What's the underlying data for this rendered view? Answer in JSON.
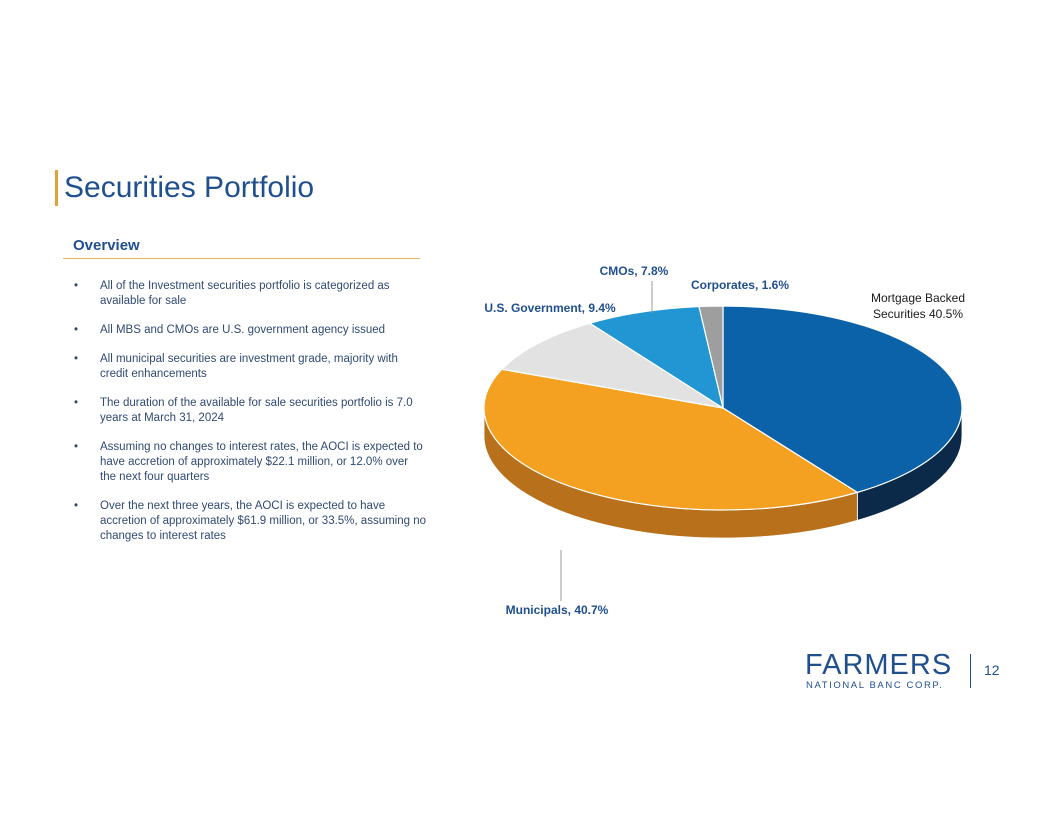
{
  "slide": {
    "title": "Securities Portfolio",
    "section": "Overview",
    "page_number": "12"
  },
  "bullets": [
    "All of the Investment securities portfolio is categorized as available for sale",
    "All MBS and CMOs are U.S. government agency issued",
    "All municipal securities are investment grade, majority with credit enhancements",
    "The duration of the available for sale securities portfolio is 7.0 years at March 31, 2024",
    "Assuming no changes to interest rates, the AOCI is expected to have accretion of approximately $22.1 million, or 12.0% over the next four quarters",
    "Over the next three years, the AOCI is expected to have accretion of approximately $61.9 million, or 33.5%, assuming no changes to interest rates"
  ],
  "bullet_symbol": "•",
  "logo": {
    "name": "FARMERS",
    "subtitle": "NATIONAL BANC CORP."
  },
  "colors": {
    "brand_blue": "#1f4f8f",
    "accent_gold": "#e0a23a"
  },
  "chart_data": {
    "type": "pie",
    "style": "3d",
    "slices": [
      {
        "label_line1": "Mortgage Backed",
        "label_line2": "Securities 40.5%",
        "value": 40.5,
        "color": "#0b62a8",
        "side_color": "#0b2a49"
      },
      {
        "label_line1": "Municipals, 40.7%",
        "label_line2": "",
        "value": 40.7,
        "color": "#f4a021",
        "side_color": "#b8711a"
      },
      {
        "label_line1": "U.S. Government, 9.4%",
        "label_line2": "",
        "value": 9.4,
        "color": "#e2e2e2",
        "side_color": "#a8a8a8"
      },
      {
        "label_line1": "CMOs, 7.8%",
        "label_line2": "",
        "value": 7.8,
        "color": "#2196d3",
        "side_color": "#17679a"
      },
      {
        "label_line1": "Corporates, 1.6%",
        "label_line2": "",
        "value": 1.6,
        "color": "#9e9e9e",
        "side_color": "#6e6e6e"
      }
    ]
  }
}
